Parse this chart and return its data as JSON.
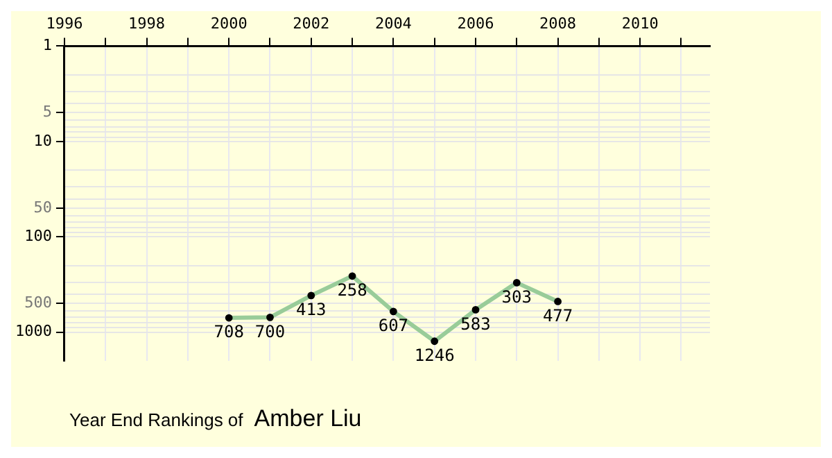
{
  "chart_data": {
    "type": "line",
    "title": "Year End Rankings of",
    "subtitle": "Amber Liu",
    "x": [
      2000,
      2001,
      2002,
      2003,
      2004,
      2005,
      2006,
      2007,
      2008
    ],
    "series": [
      {
        "color": "#99cc99",
        "values": [
          708,
          700,
          413,
          258,
          607,
          1246,
          583,
          303,
          477
        ]
      }
    ],
    "xlim": [
      1996,
      2011.7
    ],
    "xticks": [
      1996,
      {
        "value": 1997,
        "label": null
      },
      1998,
      {
        "value": 1999,
        "label": null
      },
      2000,
      {
        "value": 2001,
        "label": null
      },
      2002,
      {
        "value": 2003,
        "label": null
      },
      2004,
      {
        "value": 2005,
        "label": null
      },
      2006,
      {
        "value": 2007,
        "label": null
      },
      2008,
      {
        "value": 2009,
        "label": null
      },
      2010,
      {
        "value": 2011,
        "label": null
      }
    ],
    "ylim": [
      2000,
      1
    ],
    "log": true,
    "yticks": [
      1,
      {
        "value": 2,
        "label": null
      },
      {
        "value": 3,
        "label": null
      },
      {
        "value": 4,
        "label": null
      },
      5,
      {
        "value": 6,
        "label": null
      },
      {
        "value": 7,
        "label": null
      },
      {
        "value": 8,
        "label": null
      },
      {
        "value": 9,
        "label": null
      },
      10,
      {
        "value": 20,
        "label": null
      },
      {
        "value": 30,
        "label": null
      },
      {
        "value": 40,
        "label": null
      },
      50,
      {
        "value": 60,
        "label": null
      },
      {
        "value": 70,
        "label": null
      },
      {
        "value": 80,
        "label": null
      },
      {
        "value": 90,
        "label": null
      },
      100,
      {
        "value": 200,
        "label": null
      },
      {
        "value": 300,
        "label": null
      },
      {
        "value": 400,
        "label": null
      },
      500,
      {
        "value": 600,
        "label": null
      },
      {
        "value": 700,
        "label": null
      },
      {
        "value": 800,
        "label": null
      },
      {
        "value": 900,
        "label": null
      },
      1000
    ],
    "grid": true,
    "data_labels": true,
    "marker": "circle",
    "line_style": "solid",
    "legend": false
  }
}
